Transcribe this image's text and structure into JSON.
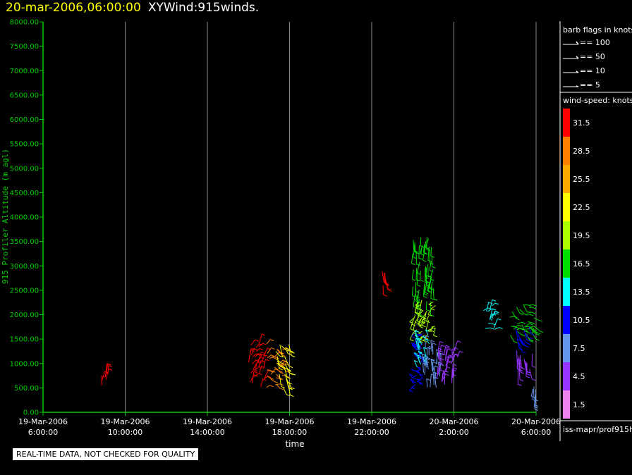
{
  "header": {
    "timestamp": "20-mar-2006,06:00:00",
    "title": "XYWind:915winds."
  },
  "chart_data": {
    "type": "scatter",
    "ylabel": "915 Profiler Altitude (m agl)",
    "xlabel": "time",
    "ylim": [
      0,
      8000
    ],
    "y_ticks": [
      "0.00",
      "500.00",
      "1000.00",
      "1500.00",
      "2000.00",
      "2500.00",
      "3000.00",
      "3500.00",
      "4000.00",
      "4500.00",
      "5000.00",
      "5500.00",
      "6000.00",
      "6500.00",
      "7000.00",
      "7500.00",
      "8000.00"
    ],
    "x_ticks": [
      {
        "date": "19-Mar-2006",
        "time": "6:00:00"
      },
      {
        "date": "19-Mar-2006",
        "time": "10:00:00"
      },
      {
        "date": "19-Mar-2006",
        "time": "14:00:00"
      },
      {
        "date": "19-Mar-2006",
        "time": "18:00:00"
      },
      {
        "date": "19-Mar-2006",
        "time": "22:00:00"
      },
      {
        "date": "20-Mar-2006",
        "time": "2:00:00"
      },
      {
        "date": "20-Mar-2006",
        "time": "6:00:00"
      }
    ],
    "grid": true,
    "clusters": [
      {
        "x_start": "19-Mar-2006 08:50",
        "x_end": "19-Mar-2006 09:10",
        "alt_min": 550,
        "alt_max": 800,
        "speed": 31.5
      },
      {
        "x_start": "19-Mar-2006 16:00",
        "x_end": "19-Mar-2006 16:50",
        "alt_min": 500,
        "alt_max": 1400,
        "speed": 31.5
      },
      {
        "x_start": "19-Mar-2006 16:50",
        "x_end": "19-Mar-2006 17:40",
        "alt_min": 500,
        "alt_max": 1400,
        "speed": 28.5
      },
      {
        "x_start": "19-Mar-2006 17:20",
        "x_end": "19-Mar-2006 18:00",
        "alt_min": 500,
        "alt_max": 1400,
        "speed": 22.5
      },
      {
        "x_start": "19-Mar-2006 22:30",
        "x_end": "19-Mar-2006 22:40",
        "alt_min": 2600,
        "alt_max": 2900,
        "speed": 31.5
      },
      {
        "x_start": "20-Mar-2006 00:00",
        "x_end": "20-Mar-2006 01:00",
        "alt_min": 2200,
        "alt_max": 3600,
        "speed": 16.5
      },
      {
        "x_start": "20-Mar-2006 00:00",
        "x_end": "20-Mar-2006 01:10",
        "alt_min": 1400,
        "alt_max": 2300,
        "speed": 19.5
      },
      {
        "x_start": "20-Mar-2006 00:00",
        "x_end": "20-Mar-2006 00:40",
        "alt_min": 500,
        "alt_max": 1700,
        "speed": 10.5
      },
      {
        "x_start": "20-Mar-2006 00:10",
        "x_end": "20-Mar-2006 00:50",
        "alt_min": 900,
        "alt_max": 1600,
        "speed": 13.5
      },
      {
        "x_start": "20-Mar-2006 00:30",
        "x_end": "20-Mar-2006 01:20",
        "alt_min": 500,
        "alt_max": 1300,
        "speed": 7.5
      },
      {
        "x_start": "20-Mar-2006 01:10",
        "x_end": "20-Mar-2006 02:10",
        "alt_min": 500,
        "alt_max": 1350,
        "speed": 4.5
      },
      {
        "x_start": "20-Mar-2006 03:20",
        "x_end": "20-Mar-2006 04:00",
        "alt_min": 1700,
        "alt_max": 2200,
        "speed": 13.5
      },
      {
        "x_start": "20-Mar-2006 04:40",
        "x_end": "20-Mar-2006 06:00",
        "alt_min": 1550,
        "alt_max": 2200,
        "speed": 16.5
      },
      {
        "x_start": "20-Mar-2006 05:00",
        "x_end": "20-Mar-2006 05:40",
        "alt_min": 1400,
        "alt_max": 1800,
        "speed": 10.5
      },
      {
        "x_start": "20-Mar-2006 05:00",
        "x_end": "20-Mar-2006 05:50",
        "alt_min": 850,
        "alt_max": 1300,
        "speed": 4.5
      },
      {
        "x_start": "20-Mar-2006 05:50",
        "x_end": "20-Mar-2006 06:00",
        "alt_min": 250,
        "alt_max": 550,
        "speed": 7.5
      }
    ]
  },
  "legend": {
    "barb_title": "barb flags in knots",
    "barbs": [
      "== 100",
      "== 50",
      "== 10",
      "== 5"
    ],
    "speed_title": "wind-speed: knots",
    "speed_scale": [
      {
        "label": "31.5",
        "color": "#ff0000"
      },
      {
        "label": "28.5",
        "color": "#ff8000"
      },
      {
        "label": "25.5",
        "color": "#ffaa00"
      },
      {
        "label": "22.5",
        "color": "#ffff00"
      },
      {
        "label": "19.5",
        "color": "#aaff00"
      },
      {
        "label": "16.5",
        "color": "#00dd00"
      },
      {
        "label": "13.5",
        "color": "#00ffff"
      },
      {
        "label": "10.5",
        "color": "#0000ff"
      },
      {
        "label": "7.5",
        "color": "#6495ed"
      },
      {
        "label": "4.5",
        "color": "#9933ff"
      },
      {
        "label": "1.5",
        "color": "#ee82ee"
      }
    ],
    "footer": "iss-mapr/prof915h"
  },
  "quality_notice": "REAL-TIME DATA, NOT CHECKED FOR QUALITY",
  "colors": {
    "axis": "#00cc00",
    "grid": "#888888",
    "header": "#ffff00"
  }
}
